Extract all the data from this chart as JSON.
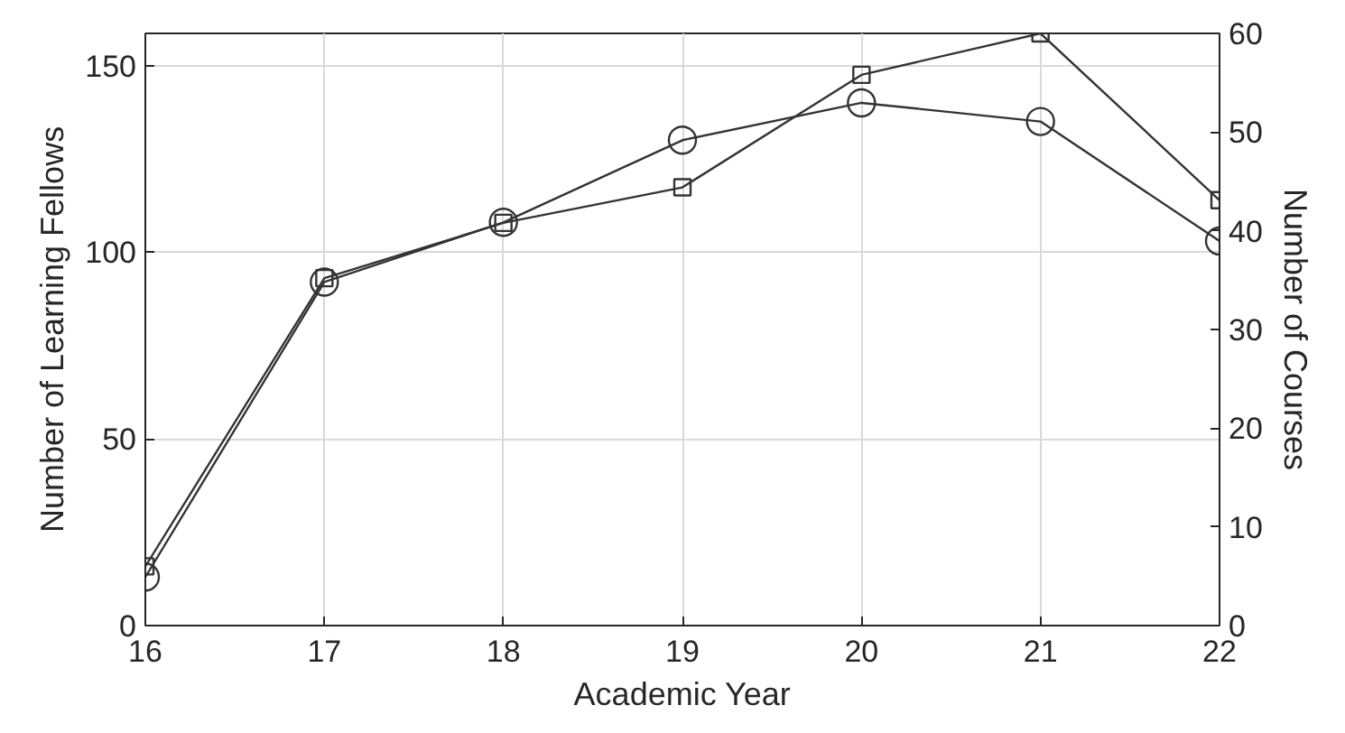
{
  "chart_data": {
    "type": "line",
    "xlabel": "Academic Year",
    "ylabel": "Number of Learning Fellows",
    "y2label": "Number of Courses",
    "x": [
      16,
      17,
      18,
      19,
      20,
      21,
      22
    ],
    "xlim": [
      16,
      22
    ],
    "xticks": [
      16,
      17,
      18,
      19,
      20,
      21,
      22
    ],
    "ylim": [
      0,
      158.6
    ],
    "yticks": [
      0,
      50,
      100,
      150
    ],
    "y2lim": [
      0,
      60
    ],
    "y2ticks": [
      0,
      10,
      20,
      30,
      40,
      50,
      60
    ],
    "grid": true,
    "line_style": "solid",
    "series": [
      {
        "color": "#333333",
        "marker": "circle",
        "values": [
          13,
          92,
          108,
          130,
          140,
          135,
          103
        ]
      },
      {
        "color": "#333333",
        "marker": "square",
        "axis": "y2",
        "values": [
          6.0,
          35.2,
          40.8,
          44.4,
          55.8,
          60,
          43.1
        ]
      }
    ]
  }
}
